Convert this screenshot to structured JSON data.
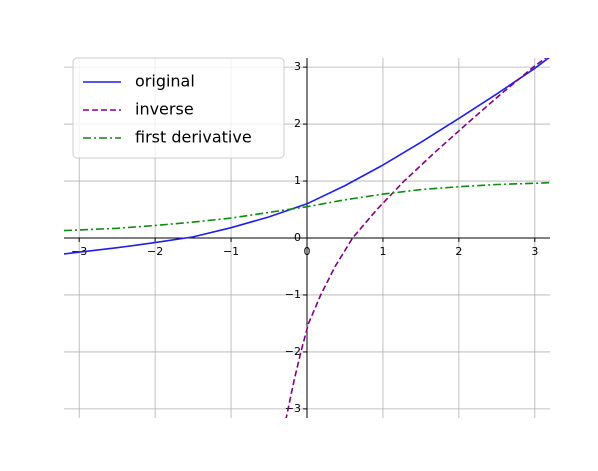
{
  "chart_data": {
    "type": "line",
    "xlim": [
      -3.2,
      3.2
    ],
    "ylim": [
      -3.16,
      3.16
    ],
    "xticks": [
      {
        "value": -3,
        "label": "−3"
      },
      {
        "value": -2,
        "label": "−2"
      },
      {
        "value": -1,
        "label": "−1"
      },
      0,
      1,
      2,
      3
    ],
    "yticks": [
      {
        "value": -3,
        "label": "−3"
      },
      {
        "value": -2,
        "label": "−2"
      },
      {
        "value": -1,
        "label": "−1"
      },
      0,
      1,
      2,
      3
    ],
    "grid": true,
    "legend": "upper left",
    "series": [
      {
        "name": "original",
        "color": "#1f1fe6",
        "linestyle": "solid",
        "x": [
          -3.2,
          -2.5,
          -2,
          -1.5,
          -1,
          -0.5,
          0,
          0.5,
          1,
          1.5,
          2,
          2.5,
          3,
          3.2
        ],
        "values": [
          -0.28,
          -0.17,
          -0.08,
          0.02,
          0.18,
          0.37,
          0.6,
          0.92,
          1.28,
          1.68,
          2.1,
          2.53,
          2.98,
          3.18
        ]
      },
      {
        "name": "inverse",
        "color": "#800080",
        "linestyle": "dashed",
        "x": [
          -0.28,
          -0.17,
          -0.08,
          0.02,
          0.18,
          0.37,
          0.6,
          0.92,
          1.28,
          1.68,
          2.1,
          2.53,
          2.98,
          3.18
        ],
        "values": [
          -3.2,
          -2.5,
          -2,
          -1.5,
          -1,
          -0.5,
          0,
          0.5,
          1,
          1.5,
          2,
          2.5,
          3,
          3.2
        ]
      },
      {
        "name": "first derivative",
        "color": "#108a10",
        "linestyle": "dashdot",
        "x": [
          -3.2,
          -2.5,
          -2,
          -1.5,
          -1,
          -0.5,
          0,
          0.5,
          1,
          1.5,
          2,
          2.5,
          3,
          3.2
        ],
        "values": [
          0.13,
          0.17,
          0.22,
          0.28,
          0.35,
          0.45,
          0.55,
          0.67,
          0.77,
          0.85,
          0.9,
          0.94,
          0.96,
          0.97
        ]
      }
    ]
  }
}
